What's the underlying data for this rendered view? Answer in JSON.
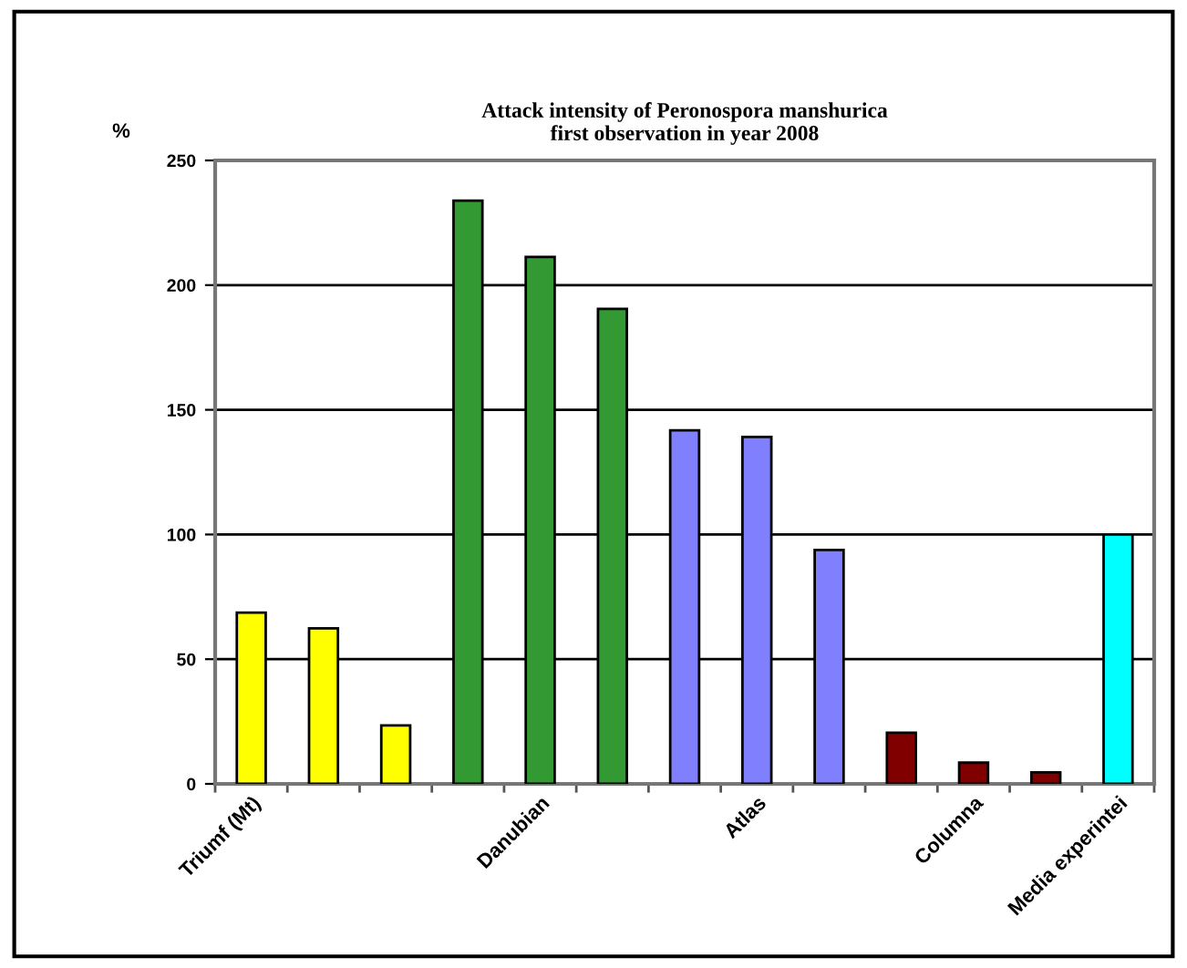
{
  "chart_data": {
    "type": "bar",
    "title": "Attack intensity of Peronospora manshurica\nfirst observation in year 2008",
    "ylabel": "%",
    "categories": [
      "Triumf (Mt)",
      null,
      null,
      null,
      "Danubian",
      null,
      null,
      "Atlas",
      null,
      null,
      "Columna",
      null,
      "Media experintei"
    ],
    "values": [
      68.7,
      62.4,
      23.4,
      233.9,
      211.3,
      190.5,
      141.8,
      139.1,
      93.8,
      20.5,
      8.5,
      4.6,
      100
    ],
    "colors": [
      "#ffff00",
      "#ffff00",
      "#ffff00",
      "#339933",
      "#339933",
      "#339933",
      "#8080ff",
      "#8080ff",
      "#8080ff",
      "#800000",
      "#800000",
      "#800000",
      "#00ffff"
    ],
    "ylim": [
      0,
      250
    ],
    "yticks": [
      0,
      50,
      100,
      150,
      200,
      250
    ],
    "grid": "y"
  }
}
